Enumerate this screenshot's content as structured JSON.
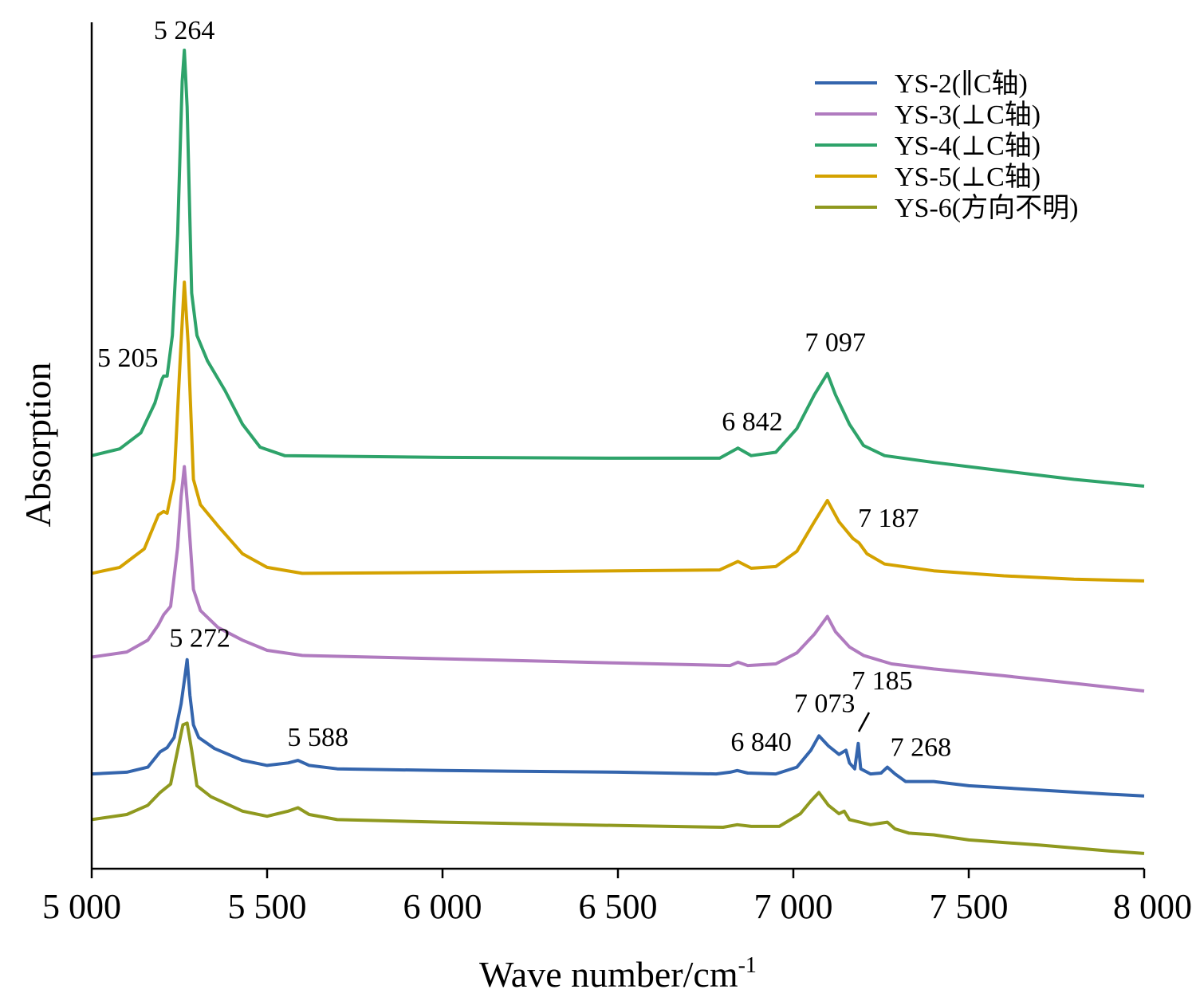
{
  "chart_data": {
    "type": "line",
    "xlabel": "Wave number/cm",
    "xlabel_sup": "-1",
    "ylabel": "Absorption",
    "xlim": [
      5000,
      8000
    ],
    "ylim": [
      0,
      1.0
    ],
    "x_ticks": [
      5000,
      5500,
      6000,
      6500,
      7000,
      7500,
      8000
    ],
    "x_tick_labels": [
      "5 000",
      "5 500",
      "6 000",
      "6 500",
      "7 000",
      "7 500",
      "8 000"
    ],
    "y_ticks_visible": false,
    "grid": false,
    "legend_position": "top-right",
    "series": [
      {
        "name": "YS-2(∥C轴)",
        "color": "#3465ad",
        "points": [
          [
            5000,
            0.112
          ],
          [
            5100,
            0.114
          ],
          [
            5160,
            0.12
          ],
          [
            5195,
            0.138
          ],
          [
            5215,
            0.143
          ],
          [
            5235,
            0.155
          ],
          [
            5255,
            0.195
          ],
          [
            5265,
            0.225
          ],
          [
            5272,
            0.247
          ],
          [
            5280,
            0.205
          ],
          [
            5290,
            0.17
          ],
          [
            5305,
            0.155
          ],
          [
            5350,
            0.142
          ],
          [
            5430,
            0.128
          ],
          [
            5500,
            0.122
          ],
          [
            5560,
            0.125
          ],
          [
            5588,
            0.128
          ],
          [
            5620,
            0.122
          ],
          [
            5700,
            0.118
          ],
          [
            6000,
            0.116
          ],
          [
            6500,
            0.114
          ],
          [
            6780,
            0.112
          ],
          [
            6820,
            0.114
          ],
          [
            6840,
            0.116
          ],
          [
            6870,
            0.113
          ],
          [
            6950,
            0.112
          ],
          [
            7010,
            0.12
          ],
          [
            7050,
            0.14
          ],
          [
            7073,
            0.157
          ],
          [
            7100,
            0.145
          ],
          [
            7130,
            0.135
          ],
          [
            7150,
            0.14
          ],
          [
            7160,
            0.125
          ],
          [
            7175,
            0.118
          ],
          [
            7185,
            0.148
          ],
          [
            7192,
            0.118
          ],
          [
            7220,
            0.112
          ],
          [
            7250,
            0.113
          ],
          [
            7268,
            0.12
          ],
          [
            7290,
            0.112
          ],
          [
            7320,
            0.103
          ],
          [
            7400,
            0.103
          ],
          [
            7500,
            0.098
          ],
          [
            7700,
            0.093
          ],
          [
            7900,
            0.088
          ],
          [
            8000,
            0.086
          ]
        ]
      },
      {
        "name": "YS-3(⊥C轴)",
        "color": "#b07bbf",
        "points": [
          [
            5000,
            0.25
          ],
          [
            5100,
            0.256
          ],
          [
            5160,
            0.27
          ],
          [
            5190,
            0.288
          ],
          [
            5205,
            0.3
          ],
          [
            5225,
            0.31
          ],
          [
            5245,
            0.38
          ],
          [
            5255,
            0.44
          ],
          [
            5264,
            0.475
          ],
          [
            5275,
            0.42
          ],
          [
            5290,
            0.33
          ],
          [
            5310,
            0.305
          ],
          [
            5360,
            0.285
          ],
          [
            5430,
            0.27
          ],
          [
            5500,
            0.258
          ],
          [
            5600,
            0.252
          ],
          [
            6000,
            0.248
          ],
          [
            6500,
            0.243
          ],
          [
            6820,
            0.24
          ],
          [
            6842,
            0.244
          ],
          [
            6870,
            0.24
          ],
          [
            6950,
            0.242
          ],
          [
            7010,
            0.255
          ],
          [
            7060,
            0.277
          ],
          [
            7097,
            0.298
          ],
          [
            7120,
            0.28
          ],
          [
            7160,
            0.262
          ],
          [
            7200,
            0.252
          ],
          [
            7280,
            0.242
          ],
          [
            7400,
            0.236
          ],
          [
            7600,
            0.228
          ],
          [
            7800,
            0.219
          ],
          [
            8000,
            0.21
          ]
        ]
      },
      {
        "name": "YS-4(⊥C轴)",
        "color": "#2ea36a",
        "points": [
          [
            5000,
            0.488
          ],
          [
            5080,
            0.496
          ],
          [
            5140,
            0.515
          ],
          [
            5180,
            0.55
          ],
          [
            5200,
            0.578
          ],
          [
            5205,
            0.582
          ],
          [
            5215,
            0.582
          ],
          [
            5230,
            0.63
          ],
          [
            5245,
            0.75
          ],
          [
            5258,
            0.93
          ],
          [
            5264,
            0.967
          ],
          [
            5272,
            0.9
          ],
          [
            5285,
            0.68
          ],
          [
            5300,
            0.63
          ],
          [
            5330,
            0.6
          ],
          [
            5380,
            0.565
          ],
          [
            5430,
            0.525
          ],
          [
            5480,
            0.498
          ],
          [
            5550,
            0.488
          ],
          [
            6000,
            0.486
          ],
          [
            6500,
            0.485
          ],
          [
            6790,
            0.485
          ],
          [
            6842,
            0.497
          ],
          [
            6880,
            0.488
          ],
          [
            6950,
            0.492
          ],
          [
            7010,
            0.52
          ],
          [
            7060,
            0.56
          ],
          [
            7097,
            0.585
          ],
          [
            7120,
            0.56
          ],
          [
            7160,
            0.525
          ],
          [
            7200,
            0.5
          ],
          [
            7260,
            0.488
          ],
          [
            7400,
            0.48
          ],
          [
            7600,
            0.47
          ],
          [
            7800,
            0.46
          ],
          [
            8000,
            0.452
          ]
        ]
      },
      {
        "name": "YS-5(⊥C轴)",
        "color": "#d4a200",
        "points": [
          [
            5000,
            0.349
          ],
          [
            5080,
            0.356
          ],
          [
            5150,
            0.378
          ],
          [
            5190,
            0.418
          ],
          [
            5205,
            0.422
          ],
          [
            5215,
            0.42
          ],
          [
            5235,
            0.46
          ],
          [
            5252,
            0.6
          ],
          [
            5264,
            0.693
          ],
          [
            5275,
            0.62
          ],
          [
            5290,
            0.46
          ],
          [
            5310,
            0.43
          ],
          [
            5360,
            0.405
          ],
          [
            5430,
            0.372
          ],
          [
            5500,
            0.356
          ],
          [
            5600,
            0.349
          ],
          [
            6000,
            0.35
          ],
          [
            6500,
            0.352
          ],
          [
            6790,
            0.353
          ],
          [
            6842,
            0.363
          ],
          [
            6880,
            0.355
          ],
          [
            6950,
            0.357
          ],
          [
            7010,
            0.375
          ],
          [
            7060,
            0.41
          ],
          [
            7097,
            0.435
          ],
          [
            7130,
            0.41
          ],
          [
            7170,
            0.39
          ],
          [
            7187,
            0.385
          ],
          [
            7210,
            0.372
          ],
          [
            7260,
            0.36
          ],
          [
            7400,
            0.352
          ],
          [
            7600,
            0.346
          ],
          [
            7800,
            0.342
          ],
          [
            8000,
            0.34
          ]
        ]
      },
      {
        "name": "YS-6(方向不明)",
        "color": "#8f991f",
        "points": [
          [
            5000,
            0.058
          ],
          [
            5100,
            0.064
          ],
          [
            5160,
            0.075
          ],
          [
            5195,
            0.09
          ],
          [
            5210,
            0.095
          ],
          [
            5225,
            0.1
          ],
          [
            5245,
            0.14
          ],
          [
            5260,
            0.17
          ],
          [
            5272,
            0.172
          ],
          [
            5285,
            0.14
          ],
          [
            5300,
            0.098
          ],
          [
            5340,
            0.085
          ],
          [
            5430,
            0.068
          ],
          [
            5500,
            0.062
          ],
          [
            5560,
            0.068
          ],
          [
            5588,
            0.072
          ],
          [
            5620,
            0.064
          ],
          [
            5700,
            0.058
          ],
          [
            6000,
            0.055
          ],
          [
            6500,
            0.051
          ],
          [
            6800,
            0.049
          ],
          [
            6840,
            0.052
          ],
          [
            6880,
            0.05
          ],
          [
            6960,
            0.05
          ],
          [
            7020,
            0.065
          ],
          [
            7050,
            0.08
          ],
          [
            7073,
            0.09
          ],
          [
            7100,
            0.075
          ],
          [
            7130,
            0.065
          ],
          [
            7145,
            0.068
          ],
          [
            7160,
            0.058
          ],
          [
            7220,
            0.052
          ],
          [
            7268,
            0.055
          ],
          [
            7290,
            0.047
          ],
          [
            7330,
            0.042
          ],
          [
            7400,
            0.04
          ],
          [
            7500,
            0.034
          ],
          [
            7700,
            0.028
          ],
          [
            7900,
            0.021
          ],
          [
            8000,
            0.018
          ]
        ]
      }
    ],
    "annotations": [
      {
        "text": "5 264",
        "x": 5264,
        "y": 0.967
      },
      {
        "text": "5 205",
        "x": 5205,
        "y": 0.582
      },
      {
        "text": "7 097",
        "x": 7097,
        "y": 0.585
      },
      {
        "text": "6 842",
        "x": 6842,
        "y": 0.497
      },
      {
        "text": "7 187",
        "x": 7187,
        "y": 0.385
      },
      {
        "text": "5 272",
        "x": 5272,
        "y": 0.247
      },
      {
        "text": "5 588",
        "x": 5588,
        "y": 0.128
      },
      {
        "text": "6 840",
        "x": 6840,
        "y": 0.116
      },
      {
        "text": "7 073",
        "x": 7073,
        "y": 0.157
      },
      {
        "text": "7 185",
        "x": 7185,
        "y": 0.148
      },
      {
        "text": "7 268",
        "x": 7268,
        "y": 0.12
      }
    ]
  }
}
